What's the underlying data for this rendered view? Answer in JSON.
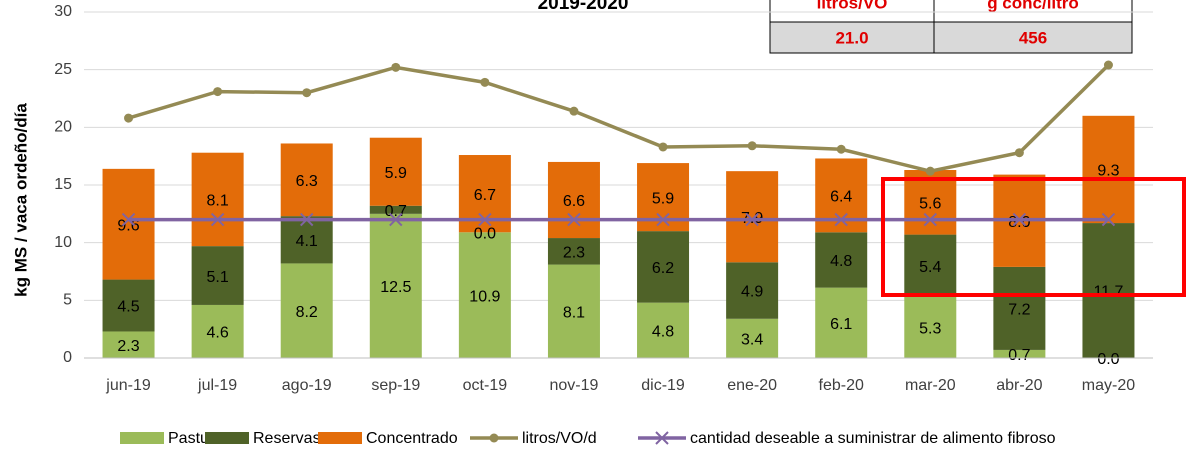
{
  "chart_data": {
    "type": "bar",
    "stacked": true,
    "title": "2019-2020",
    "y_label": "kg MS /  vaca ordeño/día",
    "categories": [
      "jun-19",
      "jul-19",
      "ago-19",
      "sep-19",
      "oct-19",
      "nov-19",
      "dic-19",
      "ene-20",
      "feb-20",
      "mar-20",
      "abr-20",
      "may-20"
    ],
    "series": [
      {
        "name": "Pastura",
        "color": "#9bbb59",
        "values": [
          2.3,
          4.6,
          8.2,
          12.5,
          10.9,
          8.1,
          4.8,
          3.4,
          6.1,
          5.3,
          0.7,
          0.0
        ],
        "value_labels": [
          "2.3",
          "4.6",
          "8.2",
          "12.5",
          "10.9",
          "8.1",
          "4.8",
          "3.4",
          "6.1",
          "5.3",
          "0.7",
          "0.0"
        ]
      },
      {
        "name": "Reservas",
        "color": "#4f6228",
        "values": [
          4.5,
          5.1,
          4.1,
          0.7,
          0.0,
          2.3,
          6.2,
          4.9,
          4.8,
          5.4,
          7.2,
          11.7
        ],
        "value_labels": [
          "4.5",
          "5.1",
          "4.1",
          "0.7",
          "0.0",
          "2.3",
          "6.2",
          "4.9",
          "4.8",
          "5.4",
          "7.2",
          "11.7"
        ]
      },
      {
        "name": "Concentrado",
        "color": "#e36c09",
        "values": [
          9.6,
          8.1,
          6.3,
          5.9,
          6.7,
          6.6,
          5.9,
          7.9,
          6.4,
          5.6,
          8.0,
          9.3
        ],
        "value_labels": [
          "9.6",
          "8.1",
          "6.3",
          "5.9",
          "6.7",
          "6.6",
          "5.9",
          "7.9",
          "6.4",
          "5.6",
          "8.0",
          "9.3"
        ]
      },
      {
        "name": "litros/VO/d",
        "type": "line",
        "marker": "circle",
        "color": "#948a54",
        "values": [
          20.8,
          23.1,
          23.0,
          25.2,
          23.9,
          21.4,
          18.3,
          18.4,
          18.1,
          16.2,
          17.8,
          25.4
        ]
      },
      {
        "name": "cantidad deseable a suministrar de alimento fibroso",
        "type": "line",
        "marker": "x",
        "color": "#8064a2",
        "values": [
          12,
          12,
          12,
          12,
          12,
          12,
          12,
          12,
          12,
          12,
          12,
          12
        ]
      }
    ],
    "ylim": [
      0,
      30
    ],
    "yticks": [
      0,
      5,
      10,
      15,
      20,
      25,
      30
    ],
    "grid": true,
    "legend": "bottom"
  },
  "table": {
    "headers": [
      "litros/VO",
      "g conc/litro"
    ],
    "rows": [
      [
        "21.0",
        "456"
      ]
    ]
  }
}
